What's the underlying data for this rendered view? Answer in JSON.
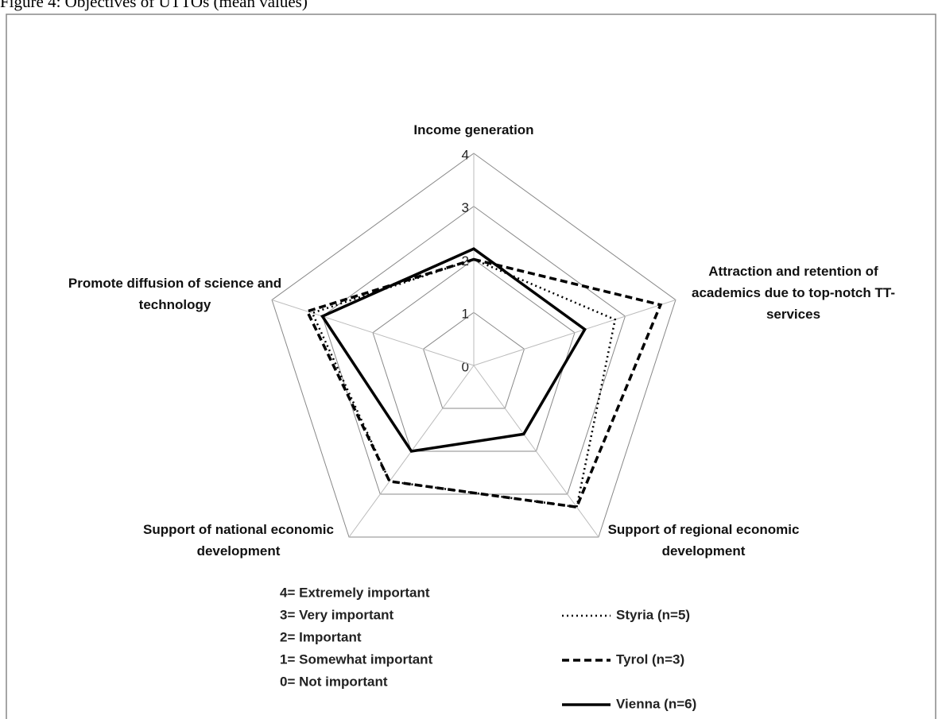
{
  "chart_data": {
    "type": "radar",
    "title": "Figure 4: Objectives of UTTOs (mean values)",
    "categories": [
      "Income generation",
      "Attraction and retention of academics due to top-notch TT-services",
      "Support of regional economic development",
      "Support of national economic development",
      "Promote diffusion of science and technology"
    ],
    "series": [
      {
        "name": "Styria (n=5)",
        "color": "#000000",
        "dash": "dotted",
        "values": [
          2.0,
          2.8,
          3.3,
          2.7,
          3.2
        ]
      },
      {
        "name": "Tyrol (n=3)",
        "color": "#000000",
        "dash": "dashed",
        "values": [
          2.0,
          3.7,
          3.3,
          2.7,
          3.3
        ]
      },
      {
        "name": "Vienna (n=6)",
        "color": "#000000",
        "dash": "solid",
        "values": [
          2.2,
          2.2,
          1.6,
          2.0,
          3.0
        ]
      }
    ],
    "ylim": [
      0,
      4
    ],
    "yticks": [
      0,
      1,
      2,
      3,
      4
    ],
    "scale_legend": [
      "4= Extremely important",
      "3= Very important",
      "2= Important",
      "1= Somewhat important",
      "0= Not important"
    ]
  }
}
